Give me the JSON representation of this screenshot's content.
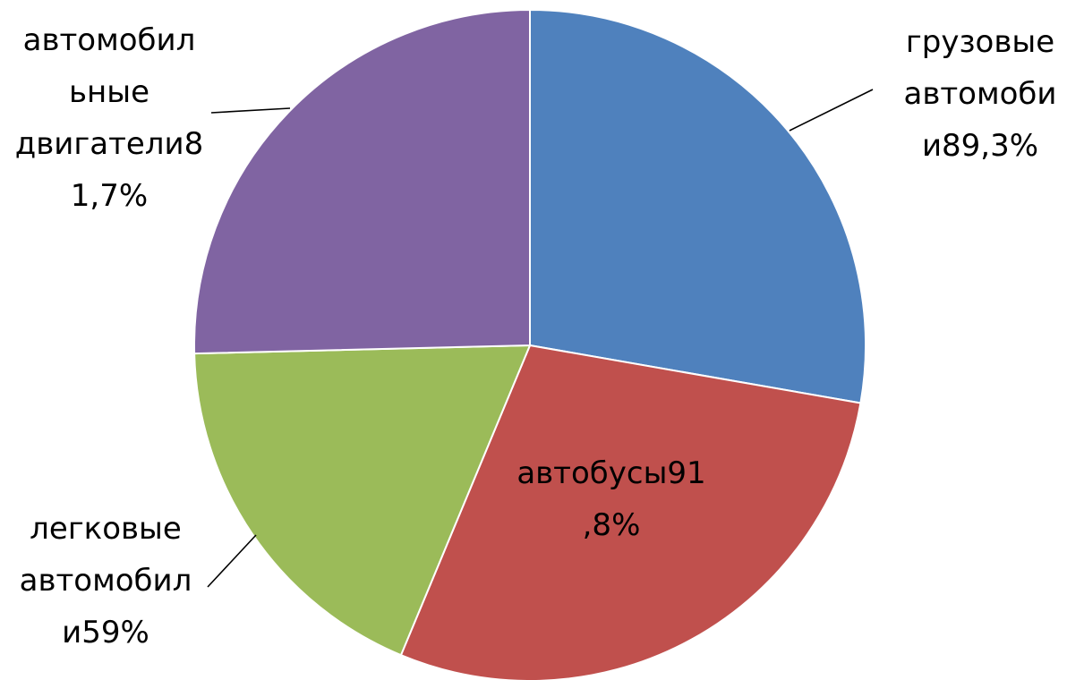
{
  "chart_data": {
    "type": "pie",
    "start_angle": "12 o'clock",
    "direction": "clockwise",
    "legend": "none",
    "slices": [
      {
        "label_lines": [
          "грузовые",
          "автомоби",
          "и89,3%"
        ],
        "value": 89.3,
        "color": "#4F81BD"
      },
      {
        "label_lines": [
          "автобусы91",
          ",8%"
        ],
        "value": 91.8,
        "color": "#C0504D"
      },
      {
        "label_lines": [
          "легковые",
          "автомобил",
          "и59%"
        ],
        "value": 59,
        "color": "#9BBB59"
      },
      {
        "label_lines": [
          "автомобил",
          "ьные",
          "двигатели8",
          "1,7%"
        ],
        "value": 81.7,
        "color": "#8064A2"
      }
    ]
  }
}
